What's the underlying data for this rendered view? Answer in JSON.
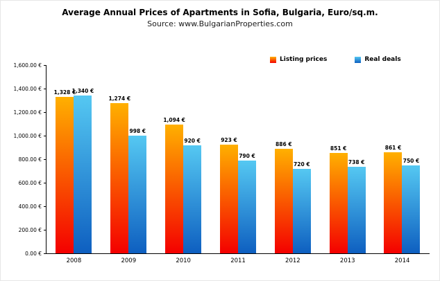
{
  "header": {
    "title": "Average Annual Prices of Apartments in Sofia, Bulgaria, Euro/sq.m.",
    "subtitle": "Source: www.BulgarianProperties.com"
  },
  "chart_data": {
    "type": "bar",
    "title": "Average Annual Prices of Apartments in Sofia, Bulgaria, Euro/sq.m.",
    "subtitle": "Source: www.BulgarianProperties.com",
    "categories": [
      "2008",
      "2009",
      "2010",
      "2011",
      "2012",
      "2013",
      "2014"
    ],
    "series": [
      {
        "name": "Listing prices",
        "values": [
          1328,
          1274,
          1094,
          923,
          886,
          851,
          861
        ],
        "labels": [
          "1,328 €",
          "1,274 €",
          "1,094 €",
          "923 €",
          "886 €",
          "851 €",
          "861 €"
        ],
        "color_top": "#FFB000",
        "color_bottom": "#F40000"
      },
      {
        "name": "Real deals",
        "values": [
          1340,
          998,
          920,
          790,
          720,
          738,
          750
        ],
        "labels": [
          "1,340 €",
          "998 €",
          "920 €",
          "790 €",
          "720 €",
          "738 €",
          "750 €"
        ],
        "color_top": "#55C8F2",
        "color_bottom": "#0E5FC0"
      }
    ],
    "ylim": [
      0,
      1600
    ],
    "ytick_step": 200,
    "ytick_labels": [
      "0.00 €",
      "200.00 €",
      "400.00 €",
      "600.00 €",
      "800.00 €",
      "1,000.00 €",
      "1,200.00 €",
      "1,400.00 €",
      "1,600.00 €"
    ],
    "legend_position": "top-right",
    "grid": false
  }
}
